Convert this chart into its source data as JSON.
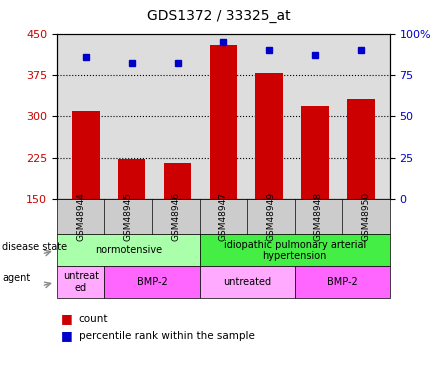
{
  "title": "GDS1372 / 33325_at",
  "samples": [
    "GSM48944",
    "GSM48945",
    "GSM48946",
    "GSM48947",
    "GSM48949",
    "GSM48948",
    "GSM48950"
  ],
  "count_values": [
    310,
    222,
    215,
    430,
    378,
    318,
    332
  ],
  "percentile_values": [
    86,
    82,
    82,
    95,
    90,
    87,
    90
  ],
  "ylim_left": [
    150,
    450
  ],
  "ylim_right": [
    0,
    100
  ],
  "yticks_left": [
    150,
    225,
    300,
    375,
    450
  ],
  "yticks_right": [
    0,
    25,
    50,
    75,
    100
  ],
  "bar_color": "#cc0000",
  "dot_color": "#0000cc",
  "grid_color": "#000000",
  "tick_label_color_left": "#cc0000",
  "tick_label_color_right": "#0000cc",
  "disease_state_groups": [
    {
      "label": "normotensive",
      "start": 0,
      "end": 3,
      "color": "#aaffaa"
    },
    {
      "label": "idiopathic pulmonary arterial\nhypertension",
      "start": 3,
      "end": 7,
      "color": "#44ee44"
    }
  ],
  "agent_groups": [
    {
      "label": "untreat\ned",
      "start": 0,
      "end": 1,
      "color": "#ffaaff"
    },
    {
      "label": "BMP-2",
      "start": 1,
      "end": 3,
      "color": "#ff66ff"
    },
    {
      "label": "untreated",
      "start": 3,
      "end": 5,
      "color": "#ffaaff"
    },
    {
      "label": "BMP-2",
      "start": 5,
      "end": 7,
      "color": "#ff66ff"
    }
  ],
  "annot_disease_state": "disease state",
  "annot_agent": "agent",
  "legend_count_color": "#cc0000",
  "legend_dot_color": "#0000cc"
}
